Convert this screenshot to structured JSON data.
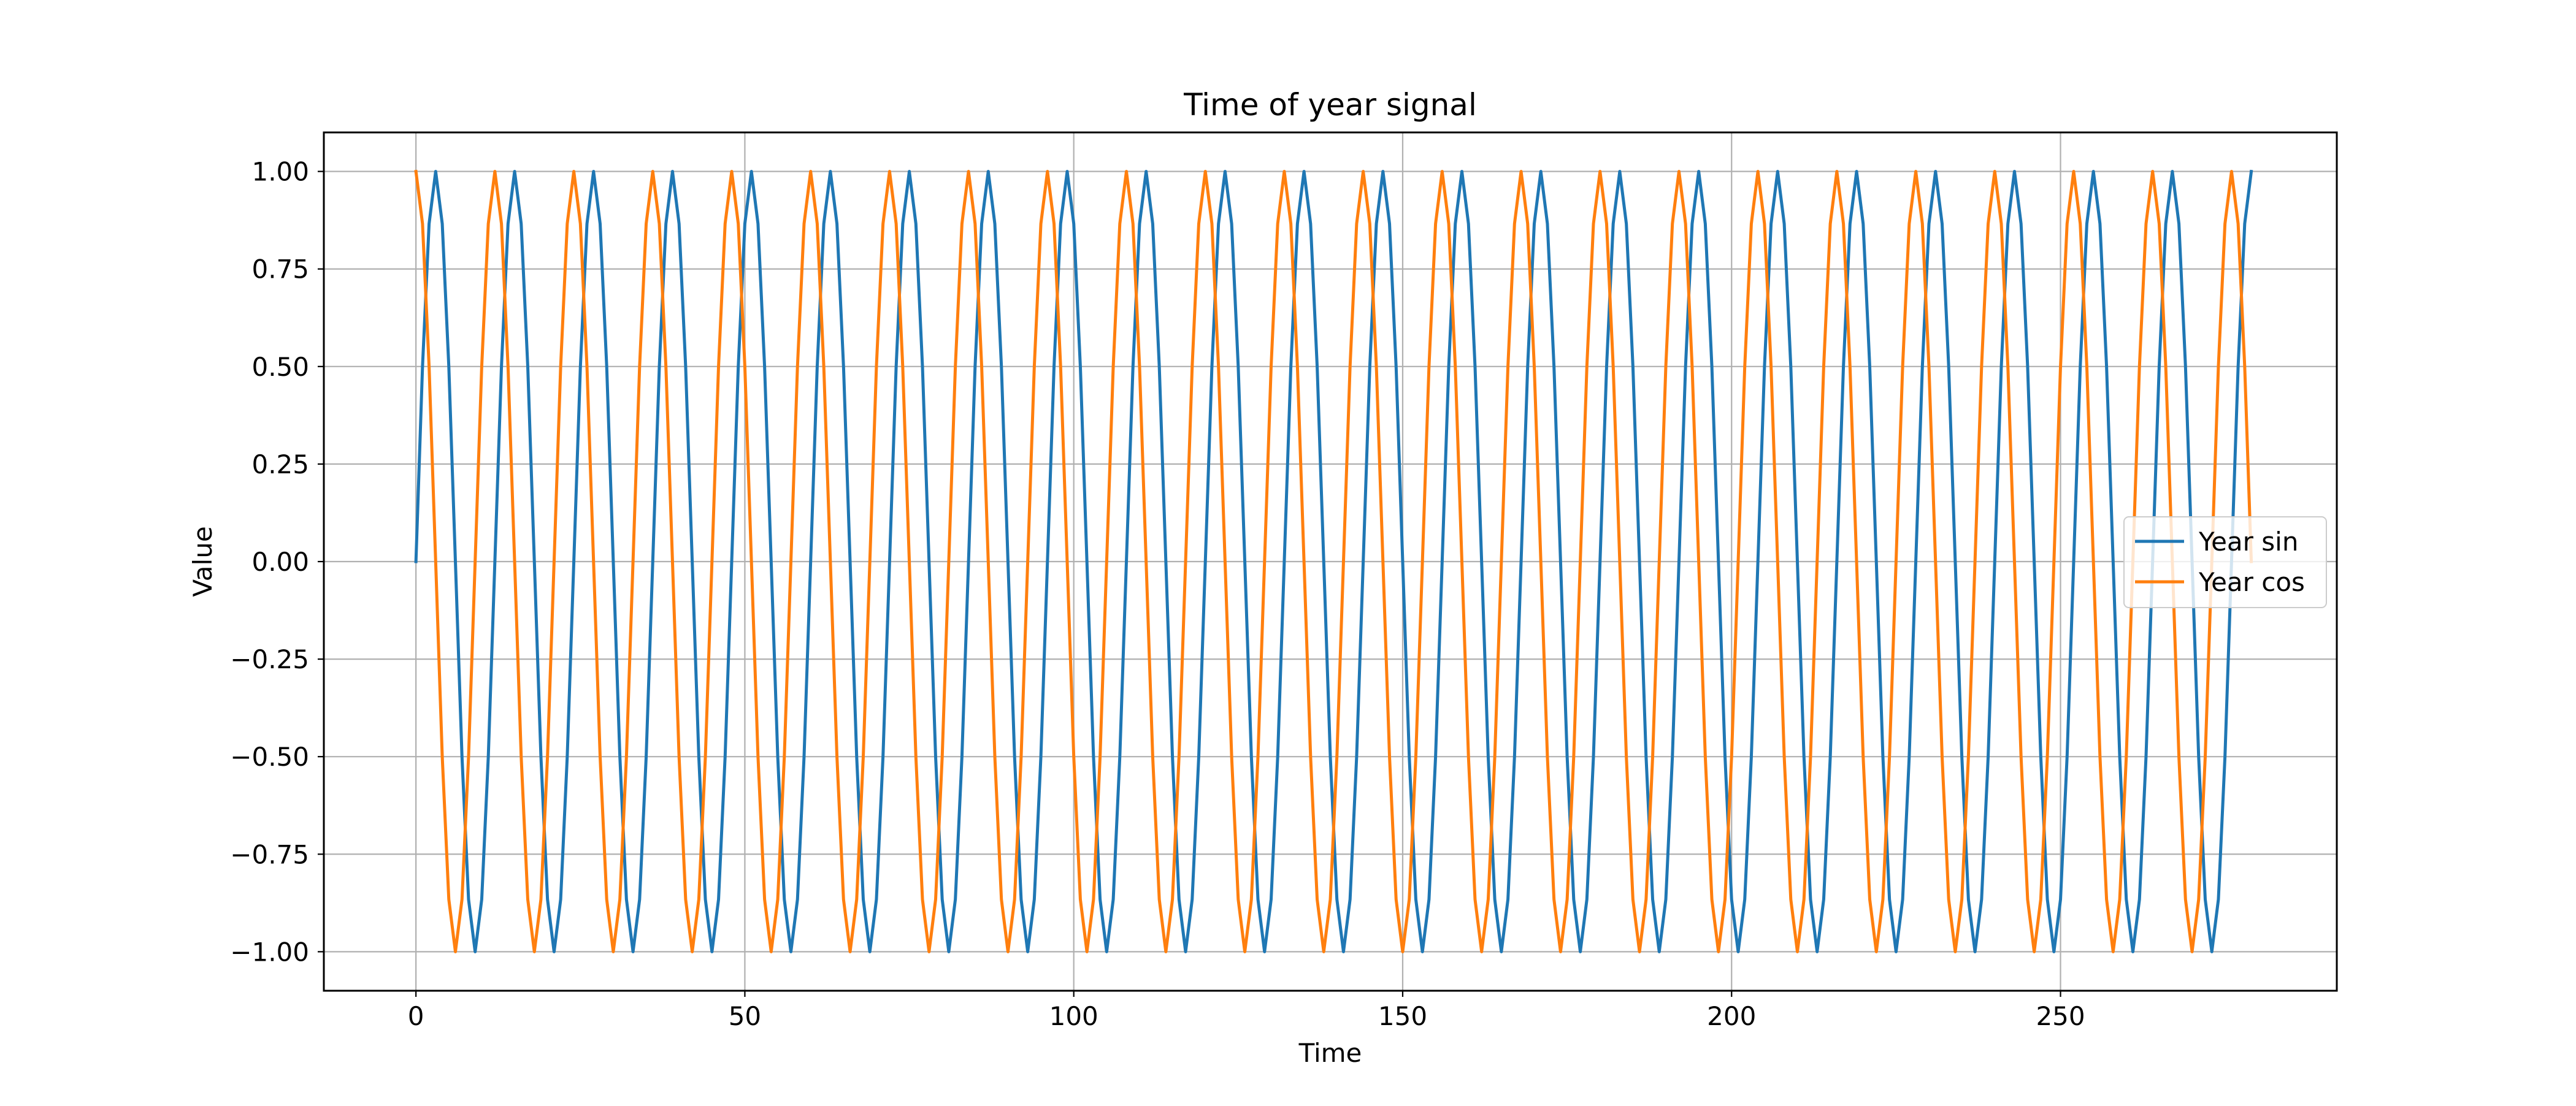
{
  "chart_data": {
    "type": "line",
    "title": "Time of year signal",
    "xlabel": "Time",
    "ylabel": "Value",
    "xlim": [
      -14,
      292
    ],
    "ylim": [
      -1.1,
      1.1
    ],
    "xticks": [
      0,
      50,
      100,
      150,
      200,
      250
    ],
    "xtick_labels": [
      "0",
      "50",
      "100",
      "150",
      "200",
      "250"
    ],
    "yticks": [
      -1.0,
      -0.75,
      -0.5,
      -0.25,
      0.0,
      0.25,
      0.5,
      0.75,
      1.0
    ],
    "ytick_labels": [
      "−1.00",
      "−0.75",
      "−0.50",
      "−0.25",
      "0.00",
      "0.25",
      "0.50",
      "0.75",
      "1.00"
    ],
    "grid": true,
    "legend_position": "center-right",
    "series": [
      {
        "name": "Year sin",
        "color": "#1f77b4",
        "function": "sin",
        "period": 12,
        "x_start": 0,
        "x_end": 279,
        "x_step": 1
      },
      {
        "name": "Year cos",
        "color": "#ff7f0e",
        "function": "cos",
        "period": 12,
        "x_start": 0,
        "x_end": 279,
        "x_step": 1
      }
    ]
  }
}
